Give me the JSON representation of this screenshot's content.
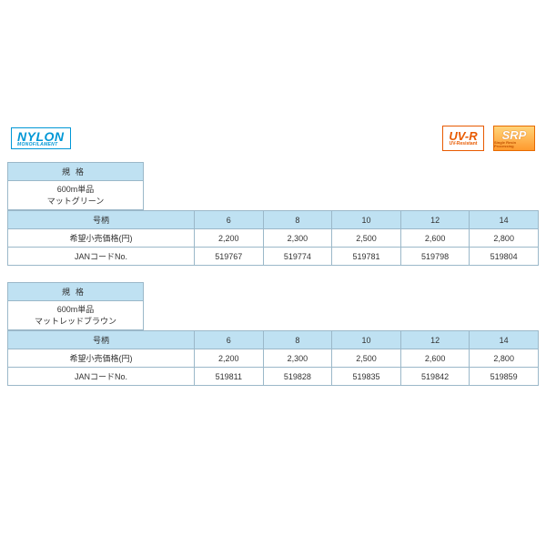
{
  "badges": {
    "nylon": {
      "title": "NYLON",
      "subtitle": "MONOFILAMENT"
    },
    "uvr": {
      "title": "UV-R",
      "subtitle": "UV-Resistant"
    },
    "srp": {
      "title": "SRP",
      "subtitle": "Single Resin Processing"
    }
  },
  "labels": {
    "spec_header": "規格",
    "size_header": "号柄",
    "price_row": "希望小売価格(円)",
    "jan_row": "JANコードNo."
  },
  "tables": [
    {
      "spec_line1": "600m単品",
      "spec_line2": "マットグリーン",
      "sizes": [
        "6",
        "8",
        "10",
        "12",
        "14"
      ],
      "prices": [
        "2,200",
        "2,300",
        "2,500",
        "2,600",
        "2,800"
      ],
      "jan": [
        "519767",
        "519774",
        "519781",
        "519798",
        "519804"
      ]
    },
    {
      "spec_line1": "600m単品",
      "spec_line2": "マットレッドブラウン",
      "sizes": [
        "6",
        "8",
        "10",
        "12",
        "14"
      ],
      "prices": [
        "2,200",
        "2,300",
        "2,500",
        "2,600",
        "2,800"
      ],
      "jan": [
        "519811",
        "519828",
        "519835",
        "519842",
        "519859"
      ]
    }
  ]
}
